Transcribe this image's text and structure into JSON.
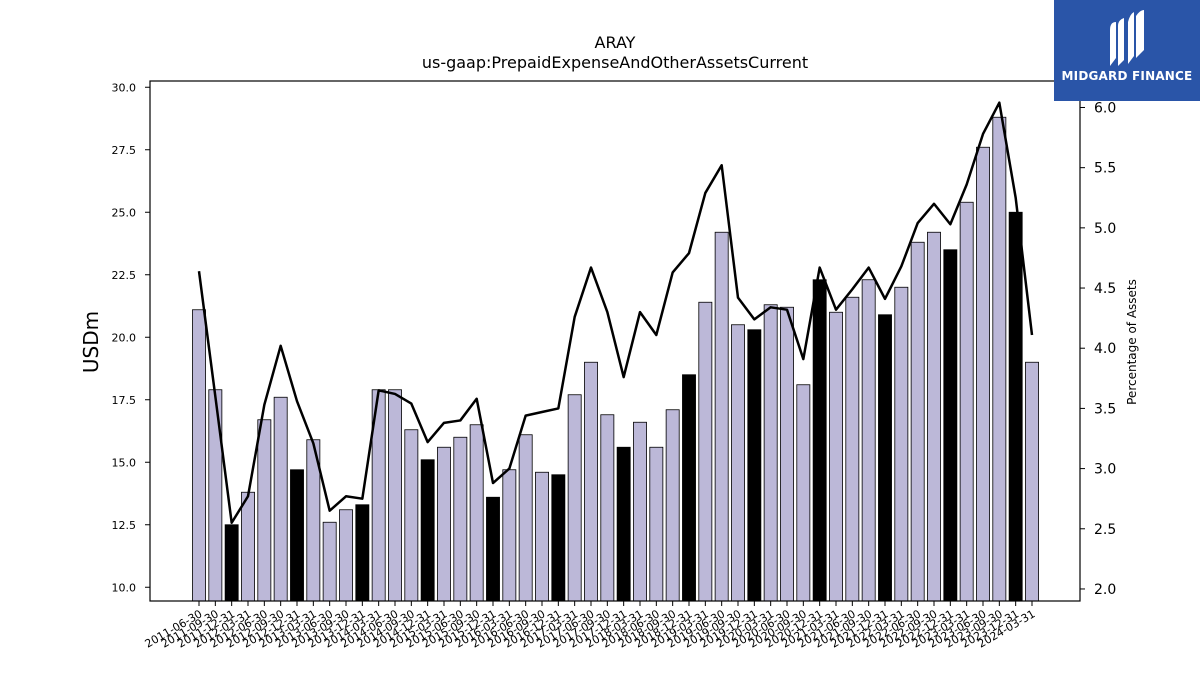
{
  "chart_data": {
    "type": "bar",
    "title": "ARAY",
    "subtitle": "us-gaap:PrepaidExpenseAndOtherAssetsCurrent",
    "ylabel": "USDm",
    "y2label": "Percentage of Assets",
    "ylim": [
      9.45,
      30.25
    ],
    "y2lim": [
      1.9,
      6.22
    ],
    "yticks": [
      10.0,
      12.5,
      15.0,
      17.5,
      20.0,
      22.5,
      25.0,
      27.5,
      30.0
    ],
    "y2ticks": [
      2.0,
      2.5,
      3.0,
      3.5,
      4.0,
      4.5,
      5.0,
      5.5,
      6.0
    ],
    "grid": false,
    "categories": [
      "2011-06-30",
      "2011-09-30",
      "2011-12-31",
      "2012-03-31",
      "2012-06-30",
      "2012-09-30",
      "2012-12-31",
      "2013-03-31",
      "2013-06-30",
      "2013-09-30",
      "2013-12-31",
      "2014-03-31",
      "2014-06-30",
      "2014-09-30",
      "2014-12-31",
      "2015-03-31",
      "2015-06-30",
      "2015-09-30",
      "2015-12-31",
      "2016-03-31",
      "2016-06-30",
      "2016-09-30",
      "2016-12-31",
      "2017-03-31",
      "2017-06-30",
      "2017-09-30",
      "2017-12-31",
      "2018-03-31",
      "2018-06-30",
      "2018-09-30",
      "2018-12-31",
      "2019-03-31",
      "2019-06-30",
      "2019-09-30",
      "2019-12-31",
      "2020-03-31",
      "2020-06-30",
      "2020-09-30",
      "2020-12-31",
      "2021-03-31",
      "2021-06-30",
      "2021-09-30",
      "2021-12-31",
      "2022-03-31",
      "2022-06-30",
      "2022-09-30",
      "2022-12-31",
      "2023-03-31",
      "2023-06-30",
      "2023-09-30",
      "2023-12-31",
      "2024-03-31"
    ],
    "series": [
      {
        "kind": "bar",
        "axis": "left",
        "values": [
          21.1,
          17.9,
          12.5,
          13.8,
          16.7,
          17.6,
          14.7,
          15.9,
          12.6,
          13.1,
          13.3,
          17.9,
          17.9,
          16.3,
          15.1,
          15.6,
          16.0,
          16.5,
          13.6,
          14.7,
          16.1,
          14.6,
          14.5,
          17.7,
          19.0,
          16.9,
          15.6,
          16.6,
          15.6,
          17.1,
          18.5,
          21.4,
          24.2,
          20.5,
          20.3,
          21.3,
          21.2,
          18.1,
          22.3,
          21.0,
          21.6,
          22.3,
          20.9,
          22.0,
          23.8,
          24.2,
          23.5,
          25.4,
          27.6,
          28.8,
          25.0,
          19.0
        ],
        "highlight": [
          false,
          false,
          true,
          false,
          false,
          false,
          true,
          false,
          false,
          false,
          true,
          false,
          false,
          false,
          true,
          false,
          false,
          false,
          true,
          false,
          false,
          false,
          true,
          false,
          false,
          false,
          true,
          false,
          false,
          false,
          true,
          false,
          false,
          false,
          true,
          false,
          false,
          false,
          true,
          false,
          false,
          false,
          true,
          false,
          false,
          false,
          true,
          false,
          false,
          false,
          true,
          false
        ]
      },
      {
        "kind": "line",
        "axis": "right",
        "values": [
          4.64,
          3.6,
          2.55,
          2.77,
          3.53,
          4.02,
          3.56,
          3.21,
          2.65,
          2.77,
          2.75,
          3.65,
          3.62,
          3.54,
          3.22,
          3.38,
          3.4,
          3.58,
          2.88,
          3.0,
          3.44,
          3.47,
          3.5,
          4.26,
          4.67,
          4.3,
          3.76,
          4.3,
          4.11,
          4.63,
          4.79,
          5.29,
          5.52,
          4.42,
          4.24,
          4.34,
          4.32,
          3.91,
          4.67,
          4.32,
          4.49,
          4.67,
          4.41,
          4.68,
          5.04,
          5.2,
          5.03,
          5.36,
          5.78,
          6.04,
          5.25,
          4.11
        ]
      }
    ],
    "colors": {
      "bar": "#bcb8d8",
      "bar_highlight": "#000000",
      "line": "#000000"
    }
  },
  "logo": {
    "text": "MIDGARD FINANCE"
  }
}
